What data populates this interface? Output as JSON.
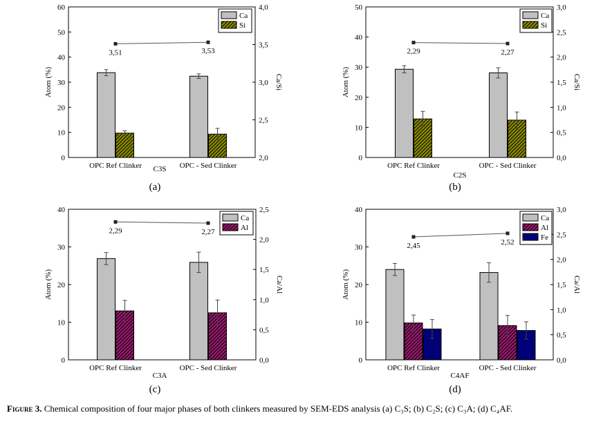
{
  "caption": {
    "label": "Figure 3.",
    "text": "Chemical composition of four major phases of both clinkers measured by SEM-EDS analysis (a) C₃S; (b) C₂S; (c) C₃A; (d) C₄AF."
  },
  "colors": {
    "ca": "#c0c0c0",
    "si": "#8b8b00",
    "al": "#99196e",
    "fe": "#0000a8",
    "ratio_line": "#555555"
  },
  "chart_data": [
    {
      "type": "bar",
      "panel": "(a)",
      "title": "C3S",
      "categories": [
        "OPC Ref Clinker",
        "OPC - Sed Clinker"
      ],
      "ylabel": "Atom (%)",
      "ylim": [
        0,
        60
      ],
      "yticks": [
        "0",
        "10",
        "20",
        "30",
        "40",
        "50",
        "60"
      ],
      "y2label": "Ca/Si",
      "y2lim": [
        2.0,
        4.0
      ],
      "y2ticks": [
        "2,0",
        "2,5",
        "3,0",
        "3,5",
        "4,0"
      ],
      "series": [
        {
          "name": "Ca",
          "color": "#c0c0c0",
          "hatch": false,
          "values": [
            33.8,
            32.4
          ],
          "errors": [
            1.2,
            0.9
          ]
        },
        {
          "name": "Si",
          "color": "#8b8b00",
          "hatch": true,
          "values": [
            9.7,
            9.3
          ],
          "errors": [
            0.9,
            2.3
          ]
        }
      ],
      "ratio": {
        "values": [
          3.51,
          3.53
        ],
        "labels": [
          "3,51",
          "3,53"
        ]
      }
    },
    {
      "type": "bar",
      "panel": "(b)",
      "title": "C2S",
      "categories": [
        "OPC Ref Clinker",
        "OPC - Sed Clinker"
      ],
      "ylabel": "Atom (%)",
      "ylim": [
        0,
        50
      ],
      "yticks": [
        "0",
        "10",
        "20",
        "30",
        "40",
        "50"
      ],
      "y2label": "Ca/Si",
      "y2lim": [
        0,
        3.0
      ],
      "y2ticks": [
        "0,0",
        "0,5",
        "1,0",
        "1,5",
        "2,0",
        "2,5",
        "3,0"
      ],
      "series": [
        {
          "name": "Ca",
          "color": "#c0c0c0",
          "hatch": false,
          "values": [
            29.3,
            28.1
          ],
          "errors": [
            1.2,
            1.7
          ]
        },
        {
          "name": "Si",
          "color": "#8b8b00",
          "hatch": true,
          "values": [
            12.8,
            12.4
          ],
          "errors": [
            2.5,
            2.7
          ]
        }
      ],
      "ratio": {
        "values": [
          2.29,
          2.27
        ],
        "labels": [
          "2,29",
          "2,27"
        ]
      }
    },
    {
      "type": "bar",
      "panel": "(c)",
      "title": "C3A",
      "categories": [
        "OPC Ref Clinker",
        "OPC - Sed Clinker"
      ],
      "ylabel": "Atom (%)",
      "ylim": [
        0,
        40
      ],
      "yticks": [
        "0",
        "10",
        "20",
        "30",
        "40"
      ],
      "y2label": "Ca/Al",
      "y2lim": [
        0,
        2.5
      ],
      "y2ticks": [
        "0,0",
        "0,5",
        "1,0",
        "1,5",
        "2,0",
        "2,5"
      ],
      "series": [
        {
          "name": "Ca",
          "color": "#c0c0c0",
          "hatch": false,
          "values": [
            26.9,
            25.9
          ],
          "errors": [
            1.6,
            2.7
          ]
        },
        {
          "name": "Al",
          "color": "#99196e",
          "hatch": true,
          "values": [
            13.0,
            12.5
          ],
          "errors": [
            2.8,
            3.4
          ]
        }
      ],
      "ratio": {
        "values": [
          2.29,
          2.27
        ],
        "labels": [
          "2,29",
          "2,27"
        ]
      }
    },
    {
      "type": "bar",
      "panel": "(d)",
      "title": "C4AF",
      "categories": [
        "OPC Ref Clinker",
        "OPC - Sed Clinker"
      ],
      "ylabel": "Atom (%)",
      "ylim": [
        0,
        40
      ],
      "yticks": [
        "0",
        "10",
        "20",
        "30",
        "40"
      ],
      "y2label": "Ca/Al",
      "y2lim": [
        0,
        3.0
      ],
      "y2ticks": [
        "0,0",
        "0,5",
        "1,0",
        "1,5",
        "2,0",
        "2,5",
        "3,0"
      ],
      "series": [
        {
          "name": "Ca",
          "color": "#c0c0c0",
          "hatch": false,
          "values": [
            24.0,
            23.2
          ],
          "errors": [
            1.6,
            2.6
          ]
        },
        {
          "name": "Al",
          "color": "#99196e",
          "hatch": true,
          "values": [
            9.8,
            9.1
          ],
          "errors": [
            2.1,
            2.7
          ]
        },
        {
          "name": "Fe",
          "color": "#0000a8",
          "hatch": true,
          "values": [
            8.2,
            7.8
          ],
          "errors": [
            2.5,
            2.3
          ]
        }
      ],
      "ratio": {
        "values": [
          2.45,
          2.52
        ],
        "labels": [
          "2,45",
          "2,52"
        ]
      }
    }
  ]
}
